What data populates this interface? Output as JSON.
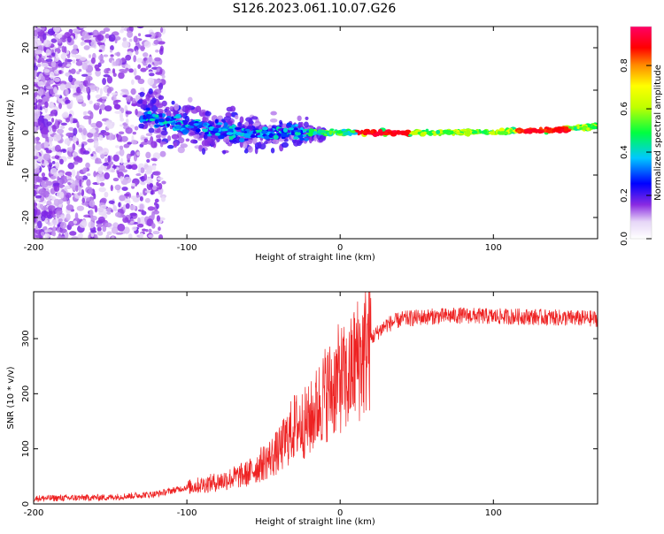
{
  "title": "S126.2023.061.10.07.G26",
  "chart_data": [
    {
      "type": "heatmap",
      "xlabel": "Height of straight line (km)",
      "ylabel": "Frequency (Hz)",
      "xlim": [
        -200,
        168
      ],
      "ylim": [
        -25,
        25
      ],
      "x_ticks": [
        "-200",
        "-100",
        "0",
        "100"
      ],
      "y_ticks": [
        "-20",
        "-10",
        "0",
        "10",
        "20"
      ],
      "x_tick_values": [
        -200,
        -100,
        0,
        100
      ],
      "y_tick_values": [
        -20,
        -10,
        0,
        10,
        20
      ],
      "ridge_frequency_hz": [
        {
          "x": -130,
          "f": 4.0
        },
        {
          "x": -100,
          "f": 1.5
        },
        {
          "x": -60,
          "f": 0.0
        },
        {
          "x": -20,
          "f": 0.0
        },
        {
          "x": 0,
          "f": 0.0
        },
        {
          "x": 50,
          "f": 0.0
        },
        {
          "x": 100,
          "f": 0.2
        },
        {
          "x": 140,
          "f": 0.6
        },
        {
          "x": 168,
          "f": 1.5
        }
      ],
      "colorbar": {
        "label": "Normalized spectral amplitude",
        "range": [
          0.0,
          0.98
        ],
        "ticks": [
          "0.0",
          "0.2",
          "0.4",
          "0.6",
          "0.8"
        ],
        "tick_values": [
          0.0,
          0.2,
          0.4,
          0.6,
          0.8
        ]
      }
    },
    {
      "type": "line",
      "xlabel": "Height of straight line (km)",
      "ylabel": "SNR (10 * v/v)",
      "xlim": [
        -200,
        168
      ],
      "ylim": [
        0,
        385
      ],
      "x_ticks": [
        "-200",
        "-100",
        "0",
        "100"
      ],
      "y_ticks": [
        "0",
        "100",
        "200",
        "300"
      ],
      "x_tick_values": [
        -200,
        -100,
        0,
        100
      ],
      "y_tick_values": [
        0,
        100,
        200,
        300
      ],
      "line_color": "#ee2222",
      "series": [
        {
          "x": [
            -200,
            -150,
            -120,
            -100,
            -80,
            -60,
            -50,
            -40,
            -30,
            -20,
            -10,
            -5,
            0,
            5,
            10,
            15,
            20,
            30,
            40,
            50,
            60,
            80,
            100,
            120,
            140,
            168
          ],
          "values": [
            10,
            12,
            18,
            30,
            40,
            55,
            75,
            95,
            140,
            150,
            200,
            210,
            230,
            220,
            260,
            270,
            300,
            325,
            335,
            338,
            340,
            342,
            340,
            340,
            338,
            336
          ]
        }
      ]
    }
  ]
}
